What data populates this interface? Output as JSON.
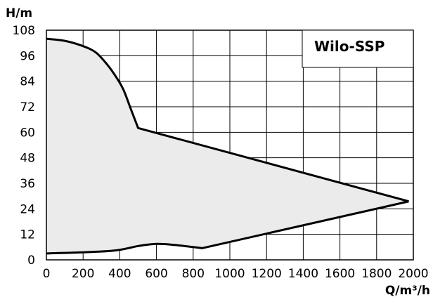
{
  "chart_data": {
    "type": "area",
    "legend_label": "Wilo-SSP",
    "legend_position": "top-right",
    "xlabel": "Q/m³/h",
    "ylabel": "H/m",
    "xlim": [
      0,
      2000
    ],
    "ylim": [
      0,
      108
    ],
    "x_ticks": [
      0,
      200,
      400,
      600,
      800,
      1000,
      1200,
      1400,
      1600,
      1800,
      2000
    ],
    "y_ticks": [
      0,
      12,
      24,
      36,
      48,
      60,
      72,
      84,
      96,
      108
    ],
    "grid": true,
    "fill_color": "#ebebeb",
    "line_color": "#000000",
    "upper_curve": [
      {
        "x": 0,
        "y": 104
      },
      {
        "x": 100,
        "y": 103
      },
      {
        "x": 200,
        "y": 100.5
      },
      {
        "x": 270,
        "y": 97.5
      },
      {
        "x": 330,
        "y": 92
      },
      {
        "x": 380,
        "y": 86
      },
      {
        "x": 420,
        "y": 80
      },
      {
        "x": 460,
        "y": 71
      },
      {
        "x": 500,
        "y": 62
      },
      {
        "x": 1975,
        "y": 27.5
      }
    ],
    "lower_curve": [
      {
        "x": 0,
        "y": 3
      },
      {
        "x": 350,
        "y": 4.2
      },
      {
        "x": 500,
        "y": 6.5
      },
      {
        "x": 600,
        "y": 7.5
      },
      {
        "x": 700,
        "y": 7
      },
      {
        "x": 850,
        "y": 5.5
      },
      {
        "x": 1975,
        "y": 27.5
      }
    ]
  }
}
